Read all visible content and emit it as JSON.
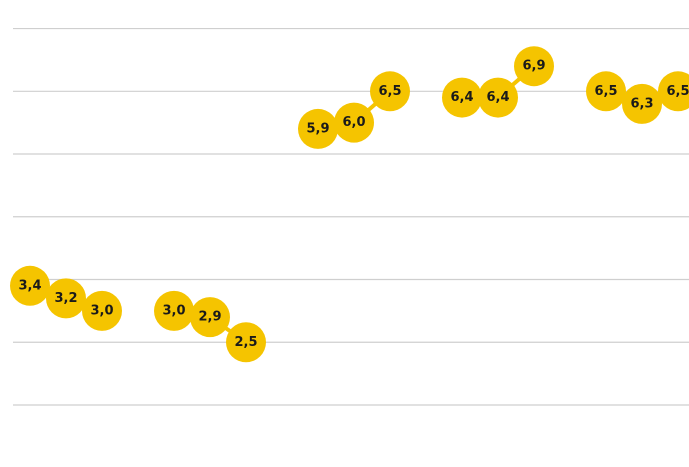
{
  "chart_data": {
    "type": "line",
    "title": "",
    "xlabel": "",
    "ylabel": "",
    "ylim": [
      1.5,
      7.7
    ],
    "grid": true,
    "axis_labels_shown": false,
    "colors": {
      "point": "#f5c400",
      "line": "#f5c400",
      "grid": "#cfcfcf",
      "text": "#1a1a1a"
    },
    "x": [
      1,
      2,
      3,
      4,
      5,
      6,
      7,
      8,
      9,
      10,
      11,
      12,
      13,
      14,
      15,
      16,
      17,
      18,
      19
    ],
    "groups": [
      {
        "values": [
          3.4,
          3.2,
          3.0
        ],
        "labels": [
          "3,4",
          "3,2",
          "3,0"
        ]
      },
      {
        "values": [
          3.0,
          2.9,
          2.5
        ],
        "labels": [
          "3,0",
          "2,9",
          "2,5"
        ]
      },
      {
        "values": [
          5.9,
          6.0,
          6.5
        ],
        "labels": [
          "5,9",
          "6,0",
          "6,5"
        ]
      },
      {
        "values": [
          6.4,
          6.4,
          6.9
        ],
        "labels": [
          "6,4",
          "6,4",
          "6,9"
        ]
      },
      {
        "values": [
          6.5,
          6.3,
          6.5
        ],
        "labels": [
          "6,5",
          "6,3",
          "6,5"
        ]
      }
    ],
    "group_start_x": [
      1,
      5,
      9,
      13,
      17
    ]
  }
}
